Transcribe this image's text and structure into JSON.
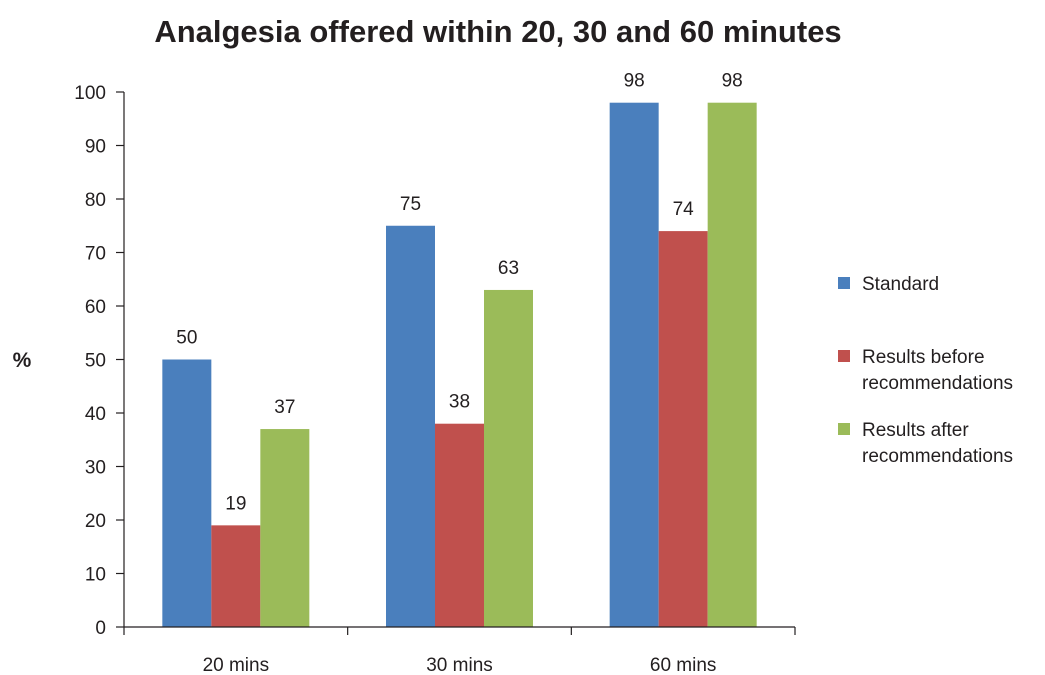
{
  "chart_data": {
    "type": "bar",
    "title": "Analgesia offered within 20, 30 and 60 minutes",
    "xlabel": "",
    "ylabel": "%",
    "ylim": [
      0,
      100
    ],
    "yticks": [
      0,
      10,
      20,
      30,
      40,
      50,
      60,
      70,
      80,
      90,
      100
    ],
    "categories": [
      "20 mins",
      "30 mins",
      "60 mins"
    ],
    "grid": false,
    "legend_position": "right",
    "series": [
      {
        "name": "Standard",
        "color": "#4a7fbd",
        "values": [
          50,
          75,
          98
        ]
      },
      {
        "name": "Results before recommendations",
        "legend_lines": [
          "Results before",
          "recommendations"
        ],
        "color": "#c0504d",
        "values": [
          19,
          38,
          74
        ]
      },
      {
        "name": "Results after recommendations",
        "legend_lines": [
          "Results after",
          "recommendations"
        ],
        "color": "#9bbb59",
        "values": [
          37,
          63,
          98
        ]
      }
    ]
  }
}
